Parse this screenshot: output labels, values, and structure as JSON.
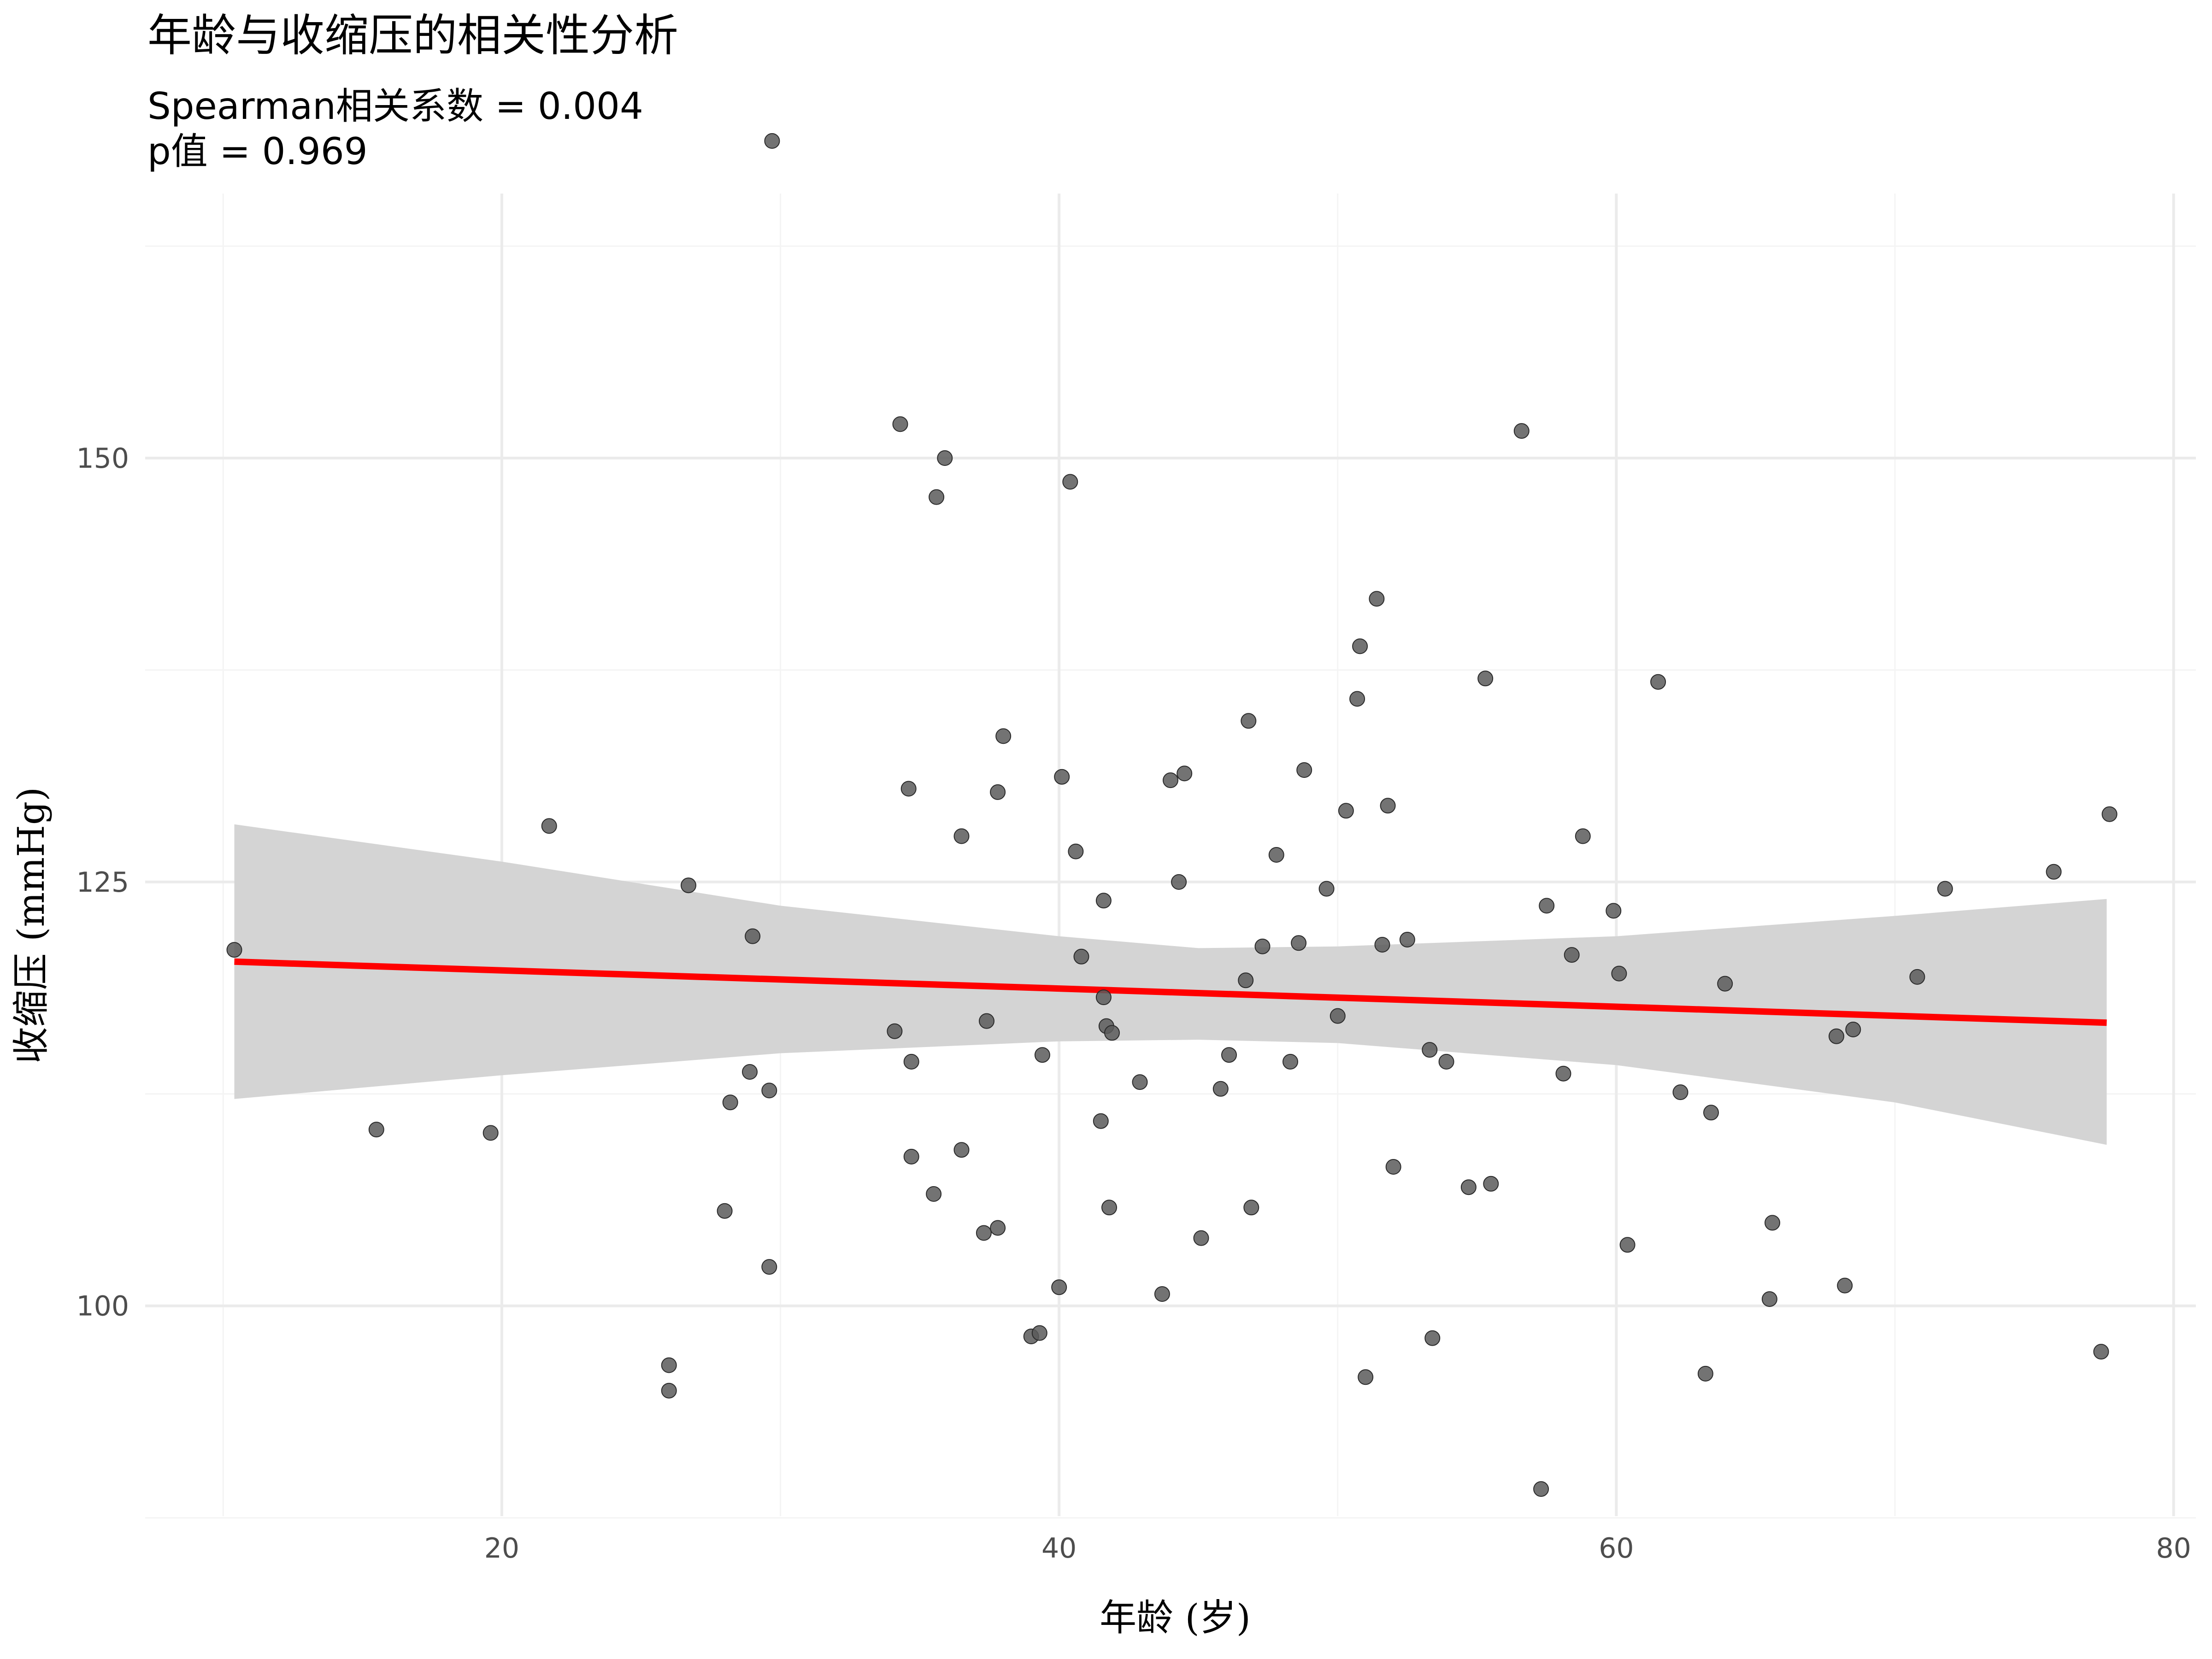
{
  "chart_data": {
    "type": "scatter",
    "title": "年龄与收缩压的相关性分析",
    "subtitle_lines": [
      "Spearman相关系数 = 0.004",
      "p值 = 0.969"
    ],
    "xlabel": "年龄 (岁)",
    "ylabel": "收缩压 (mmHg)",
    "xlim": [
      7.2,
      80.8
    ],
    "ylim": [
      87.6,
      165.6
    ],
    "x_ticks": [
      20,
      40,
      60,
      80
    ],
    "y_ticks": [
      100,
      125,
      150
    ],
    "x_minor_ticks": [
      10,
      30,
      50,
      70
    ],
    "y_minor_ticks": [
      87.5,
      112.5,
      137.5,
      162.5
    ],
    "grid": true,
    "colors": {
      "points": "#5a5a5a",
      "point_stroke": "#2a2a2a",
      "regression_line": "#ff0000",
      "confidence_band": "#d4d4d4",
      "grid_major": "#ebebeb",
      "grid_minor": "#f4f4f4"
    },
    "regression": {
      "x": [
        10.4,
        77.6
      ],
      "y": [
        120.3,
        116.7
      ]
    },
    "confidence_band": {
      "x": [
        10.4,
        20,
        30,
        40,
        45,
        50,
        60,
        70,
        77.6
      ],
      "lower": [
        112.2,
        113.6,
        114.9,
        115.6,
        115.7,
        115.5,
        114.2,
        112.0,
        109.5
      ],
      "upper": [
        128.4,
        126.2,
        123.6,
        121.8,
        121.1,
        121.2,
        121.8,
        123.0,
        124.0
      ]
    },
    "points": [
      [
        10.4,
        121.0
      ],
      [
        15.5,
        110.4
      ],
      [
        19.6,
        110.2
      ],
      [
        21.7,
        128.3
      ],
      [
        26.0,
        96.5
      ],
      [
        26.0,
        95.0
      ],
      [
        26.7,
        124.8
      ],
      [
        28.0,
        105.6
      ],
      [
        28.2,
        112.0
      ],
      [
        28.9,
        113.8
      ],
      [
        29.0,
        121.8
      ],
      [
        29.6,
        112.7
      ],
      [
        29.6,
        102.3
      ],
      [
        29.7,
        168.7
      ],
      [
        34.1,
        116.2
      ],
      [
        34.3,
        152.0
      ],
      [
        34.6,
        130.5
      ],
      [
        34.7,
        114.4
      ],
      [
        34.7,
        108.8
      ],
      [
        35.5,
        106.6
      ],
      [
        35.6,
        147.7
      ],
      [
        35.9,
        150.0
      ],
      [
        36.5,
        127.7
      ],
      [
        36.5,
        109.2
      ],
      [
        37.3,
        104.3
      ],
      [
        37.4,
        116.8
      ],
      [
        37.8,
        130.3
      ],
      [
        37.8,
        104.6
      ],
      [
        38.0,
        133.6
      ],
      [
        39.0,
        98.2
      ],
      [
        39.3,
        98.4
      ],
      [
        39.4,
        114.8
      ],
      [
        40.0,
        101.1
      ],
      [
        40.1,
        131.2
      ],
      [
        40.4,
        148.6
      ],
      [
        40.6,
        126.8
      ],
      [
        40.8,
        120.6
      ],
      [
        41.5,
        110.9
      ],
      [
        41.6,
        123.9
      ],
      [
        41.6,
        118.2
      ],
      [
        41.7,
        116.5
      ],
      [
        41.8,
        105.8
      ],
      [
        41.9,
        116.1
      ],
      [
        42.9,
        113.2
      ],
      [
        43.7,
        100.7
      ],
      [
        44.0,
        131.0
      ],
      [
        44.3,
        125.0
      ],
      [
        44.5,
        131.4
      ],
      [
        45.1,
        104.0
      ],
      [
        45.8,
        112.8
      ],
      [
        46.1,
        114.8
      ],
      [
        46.7,
        119.2
      ],
      [
        46.8,
        134.5
      ],
      [
        46.9,
        105.8
      ],
      [
        47.3,
        121.2
      ],
      [
        47.8,
        126.6
      ],
      [
        48.3,
        114.4
      ],
      [
        48.6,
        121.4
      ],
      [
        48.8,
        131.6
      ],
      [
        49.6,
        124.6
      ],
      [
        50.0,
        117.1
      ],
      [
        50.3,
        129.2
      ],
      [
        50.7,
        135.8
      ],
      [
        50.8,
        138.9
      ],
      [
        51.0,
        95.8
      ],
      [
        51.4,
        141.7
      ],
      [
        51.6,
        121.3
      ],
      [
        51.8,
        129.5
      ],
      [
        52.0,
        108.2
      ],
      [
        52.5,
        121.6
      ],
      [
        53.3,
        115.1
      ],
      [
        53.4,
        98.1
      ],
      [
        53.9,
        114.4
      ],
      [
        54.7,
        107.0
      ],
      [
        55.3,
        137.0
      ],
      [
        55.5,
        107.2
      ],
      [
        56.6,
        151.6
      ],
      [
        57.3,
        89.2
      ],
      [
        57.5,
        123.6
      ],
      [
        58.1,
        113.7
      ],
      [
        58.4,
        120.7
      ],
      [
        58.8,
        127.7
      ],
      [
        59.9,
        123.3
      ],
      [
        60.1,
        119.6
      ],
      [
        60.4,
        103.6
      ],
      [
        61.5,
        136.8
      ],
      [
        62.3,
        112.6
      ],
      [
        63.2,
        96.0
      ],
      [
        63.4,
        111.4
      ],
      [
        63.9,
        119.0
      ],
      [
        65.5,
        100.4
      ],
      [
        65.6,
        104.9
      ],
      [
        67.9,
        115.9
      ],
      [
        68.2,
        101.2
      ],
      [
        68.5,
        116.3
      ],
      [
        70.8,
        119.4
      ],
      [
        71.8,
        124.6
      ],
      [
        75.7,
        125.6
      ],
      [
        77.4,
        97.3
      ],
      [
        77.7,
        129.0
      ]
    ]
  }
}
